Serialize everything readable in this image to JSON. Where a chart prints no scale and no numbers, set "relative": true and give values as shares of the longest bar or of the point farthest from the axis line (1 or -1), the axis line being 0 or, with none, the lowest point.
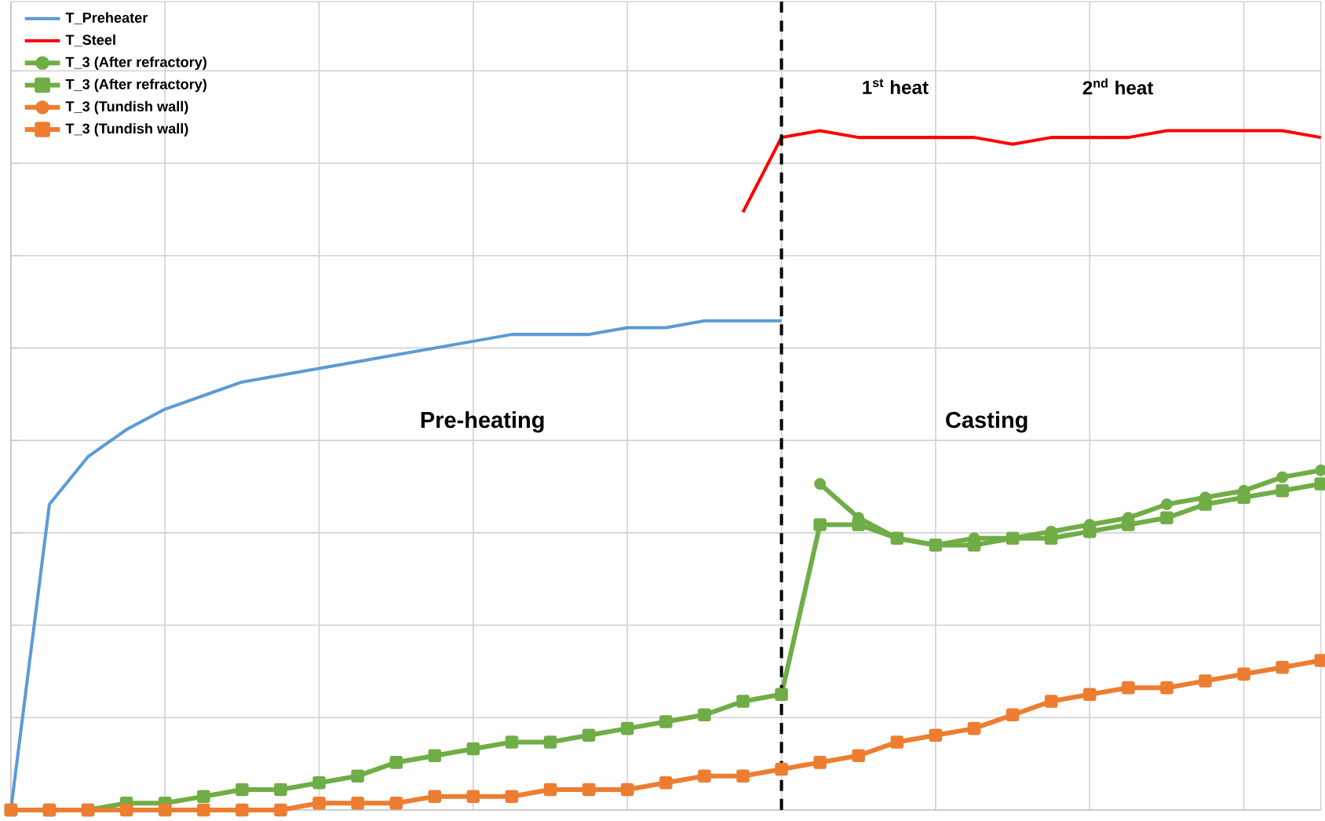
{
  "chart_data": {
    "type": "line",
    "relative": true,
    "tick_labels": false,
    "grid": true,
    "legend": "top left",
    "categories": [
      null,
      null,
      null,
      null,
      null,
      null,
      null,
      null,
      null,
      null,
      null,
      null,
      null,
      null,
      null,
      null,
      null,
      null,
      null,
      null,
      null,
      null,
      null,
      null,
      null,
      null,
      null,
      null,
      null,
      null,
      null,
      null,
      null,
      null,
      null
    ],
    "series": [
      {
        "name": "T_Preheater",
        "type": "line",
        "color": "#5b9bd5",
        "values": [
          0,
          0.45,
          0.52,
          0.56,
          0.59,
          0.61,
          0.63,
          0.64,
          0.65,
          0.66,
          0.67,
          0.68,
          0.69,
          0.7,
          0.7,
          0.7,
          0.71,
          0.71,
          0.72,
          0.72,
          0.72,
          null,
          null,
          null,
          null,
          null,
          null,
          null,
          null,
          null,
          null,
          null,
          null,
          null,
          null
        ]
      },
      {
        "name": "T_Steel",
        "type": "line",
        "color": "#ff0000",
        "values": [
          null,
          null,
          null,
          null,
          null,
          null,
          null,
          null,
          null,
          null,
          null,
          null,
          null,
          null,
          null,
          null,
          null,
          null,
          null,
          0.88,
          0.99,
          1.0,
          0.99,
          0.99,
          0.99,
          0.99,
          0.98,
          0.99,
          0.99,
          0.99,
          1.0,
          1.0,
          1.0,
          1.0,
          0.99
        ]
      },
      {
        "name": "T_3 (After refractory)",
        "type": "line",
        "marker": "circle",
        "color": "#70ad47",
        "values": [
          null,
          null,
          null,
          null,
          null,
          null,
          null,
          null,
          null,
          null,
          null,
          null,
          null,
          null,
          null,
          null,
          null,
          null,
          null,
          null,
          null,
          0.48,
          0.43,
          0.4,
          0.39,
          0.4,
          0.4,
          0.41,
          0.42,
          0.43,
          0.45,
          0.46,
          0.47,
          0.49,
          0.5
        ]
      },
      {
        "name": "T_3  (After refractory)",
        "type": "line",
        "marker": "square",
        "color": "#70ad47",
        "values": [
          0,
          0,
          0,
          0.01,
          0.01,
          0.02,
          0.03,
          0.03,
          0.04,
          0.05,
          0.07,
          0.08,
          0.09,
          0.1,
          0.1,
          0.11,
          0.12,
          0.13,
          0.14,
          0.16,
          0.17,
          0.42,
          0.42,
          0.4,
          0.39,
          0.39,
          0.4,
          0.4,
          0.41,
          0.42,
          0.43,
          0.45,
          0.46,
          0.47,
          0.48
        ]
      },
      {
        "name": "T_3 (Tundish wall)",
        "type": "line",
        "marker": "circle",
        "color": "#ed7d31",
        "values": [
          null,
          null,
          null,
          null,
          null,
          null,
          null,
          null,
          null,
          null,
          null,
          null,
          null,
          null,
          null,
          null,
          null,
          null,
          null,
          null,
          null,
          null,
          null,
          null,
          null,
          null,
          null,
          null,
          null,
          null,
          null,
          null,
          null,
          null,
          null
        ]
      },
      {
        "name": "T_3 (Tundish wall)",
        "type": "line",
        "marker": "square",
        "color": "#ed7d31",
        "values": [
          0,
          0,
          0,
          0,
          0,
          0,
          0,
          0,
          0.01,
          0.01,
          0.01,
          0.02,
          0.02,
          0.02,
          0.03,
          0.03,
          0.03,
          0.04,
          0.05,
          0.05,
          0.06,
          0.07,
          0.08,
          0.1,
          0.11,
          0.12,
          0.14,
          0.16,
          0.17,
          0.18,
          0.18,
          0.19,
          0.2,
          0.21,
          0.22
        ]
      }
    ],
    "annotations": [
      "Pre-heating",
      "Casting",
      "1$^{st}$ heat",
      "2$^{nd}$ heat"
    ]
  }
}
